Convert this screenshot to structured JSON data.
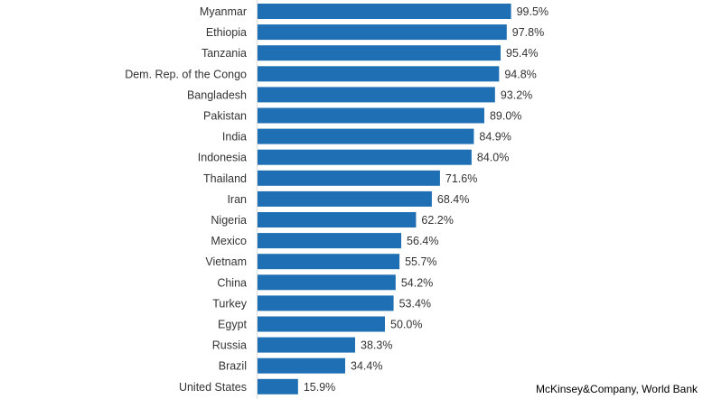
{
  "chart_data": {
    "type": "bar",
    "orientation": "horizontal",
    "categories": [
      "Myanmar",
      "Ethiopia",
      "Tanzania",
      "Dem. Rep. of the Congo",
      "Bangladesh",
      "Pakistan",
      "India",
      "Indonesia",
      "Thailand",
      "Iran",
      "Nigeria",
      "Mexico",
      "Vietnam",
      "China",
      "Turkey",
      "Egypt",
      "Russia",
      "Brazil",
      "United States"
    ],
    "values": [
      99.5,
      97.8,
      95.4,
      94.8,
      93.2,
      89.0,
      84.9,
      84.0,
      71.6,
      68.4,
      62.2,
      56.4,
      55.7,
      54.2,
      53.4,
      50.0,
      38.3,
      34.4,
      15.9
    ],
    "value_labels": [
      "99.5%",
      "97.8%",
      "95.4%",
      "94.8%",
      "93.2%",
      "89.0%",
      "84.9%",
      "84.0%",
      "71.6%",
      "68.4%",
      "62.2%",
      "56.4%",
      "55.7%",
      "54.2%",
      "53.4%",
      "50.0%",
      "38.3%",
      "34.4%",
      "15.9%"
    ],
    "xlim": [
      0,
      100
    ],
    "grid": false,
    "bar_color": "#1f6fb4"
  },
  "source": "McKinsey&Company, World Bank"
}
